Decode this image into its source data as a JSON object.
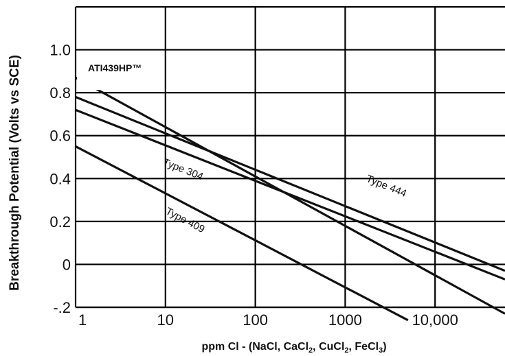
{
  "chart_data": {
    "type": "line",
    "x_scale": "log",
    "xlim": [
      1,
      60000
    ],
    "ylim": [
      -0.2,
      1.2
    ],
    "grid": true,
    "xlabel_parts": [
      "ppm Cl ",
      "- ",
      "(NaCl, CaCl",
      "2",
      ", CuCl",
      "2",
      ", FeCl",
      "3",
      ")"
    ],
    "ylabel": "Breakthrough Potential (Volts vs SCE)",
    "x_ticks": [
      {
        "value": 1,
        "label": "1"
      },
      {
        "value": 10,
        "label": "10"
      },
      {
        "value": 100,
        "label": "100"
      },
      {
        "value": 1000,
        "label": "1000"
      },
      {
        "value": 10000,
        "label": "10,000"
      }
    ],
    "y_ticks": [
      {
        "value": 1.0,
        "label": "1.0"
      },
      {
        "value": 0.8,
        "label": "0.8"
      },
      {
        "value": 0.6,
        "label": "0.6"
      },
      {
        "value": 0.4,
        "label": "0.4"
      },
      {
        "value": 0.2,
        "label": "0.2"
      },
      {
        "value": 0.0,
        "label": "0"
      },
      {
        "value": -0.2,
        "label": "-.2"
      }
    ],
    "series": [
      {
        "name": "ATI439HP™",
        "x": [
          1,
          60000
        ],
        "y": [
          0.87,
          -0.23
        ]
      },
      {
        "name": "Type 444",
        "x": [
          1,
          60000
        ],
        "y": [
          0.78,
          -0.03
        ]
      },
      {
        "name": "Type 304",
        "x": [
          1,
          60000
        ],
        "y": [
          0.72,
          -0.07
        ]
      },
      {
        "name": "Type 409",
        "x": [
          1,
          5000
        ],
        "y": [
          0.55,
          -0.26
        ]
      }
    ]
  }
}
